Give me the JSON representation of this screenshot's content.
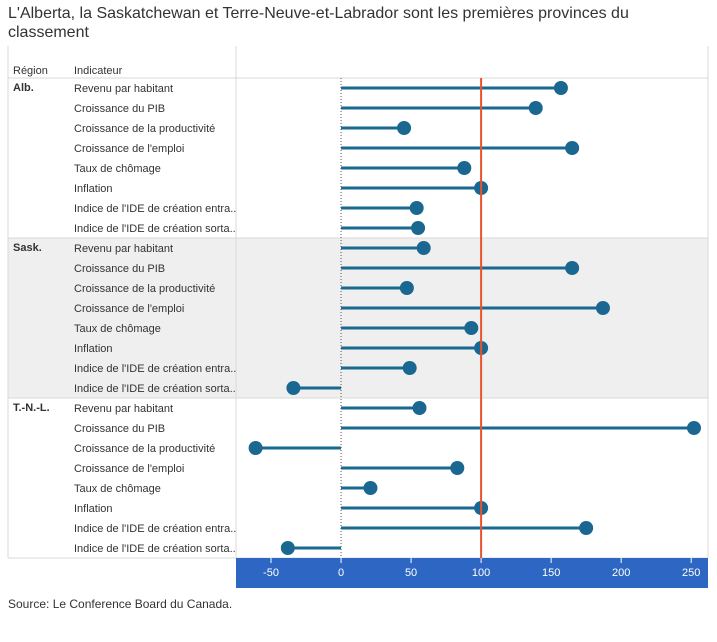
{
  "title": "L'Alberta, la Saskatchewan et Terre-Neuve-et-Labrador sont les premières provinces du classement",
  "source": "Source: Le Conference Board du Canada.",
  "colors": {
    "lollipop": "#1a6891",
    "reference_line": "#e8532e",
    "axis_band": "#2e67c3",
    "shaded_group": "#efefef"
  },
  "chart_data": {
    "type": "lollipop",
    "column_headers": {
      "region": "Région",
      "indicator": "Indicateur"
    },
    "reference_value": 100,
    "xlim": [
      -75,
      262
    ],
    "xticks": [
      -50,
      0,
      50,
      100,
      150,
      200,
      250
    ],
    "xtick_labels": [
      "-50",
      "0",
      "50",
      "100",
      "150",
      "200",
      "250"
    ],
    "groups": [
      {
        "region": "Alb.",
        "shaded": false,
        "indicators": [
          "Revenu par habitant",
          "Croissance du PIB",
          "Croissance de la productivité",
          "Croissance de l'emploi",
          "Taux de chômage",
          "Inflation",
          "Indice de l'IDE de création entra..",
          "Indice de l'IDE de création sorta.."
        ],
        "values": [
          157,
          139,
          45,
          165,
          88,
          100,
          54,
          55
        ]
      },
      {
        "region": "Sask.",
        "shaded": true,
        "indicators": [
          "Revenu par habitant",
          "Croissance du PIB",
          "Croissance de la productivité",
          "Croissance de l'emploi",
          "Taux de chômage",
          "Inflation",
          "Indice de l'IDE de création entra..",
          "Indice de l'IDE de création sorta.."
        ],
        "values": [
          59,
          165,
          47,
          187,
          93,
          100,
          49,
          -34
        ]
      },
      {
        "region": "T.-N.-L.",
        "shaded": false,
        "indicators": [
          "Revenu par habitant",
          "Croissance du PIB",
          "Croissance de la productivité",
          "Croissance de l'emploi",
          "Taux de chômage",
          "Inflation",
          "Indice de l'IDE de création entra..",
          "Indice de l'IDE de création sorta.."
        ],
        "values": [
          56,
          252,
          -61,
          83,
          21,
          100,
          175,
          -38
        ]
      }
    ]
  }
}
